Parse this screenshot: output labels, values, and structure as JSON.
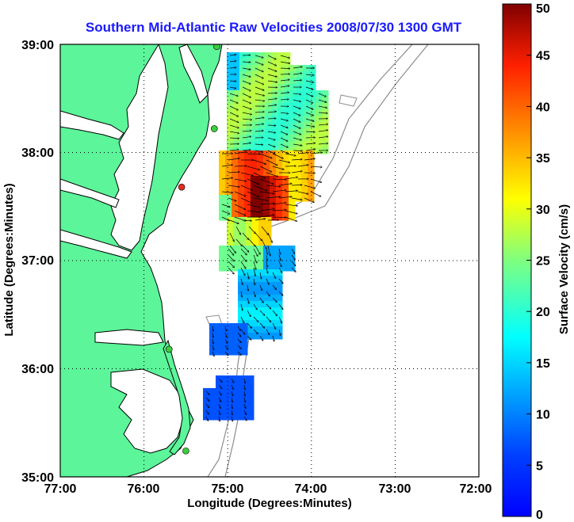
{
  "title": "Southern Mid-Atlantic Raw Velocities 2008/07/30 1300 GMT",
  "x_axis": {
    "label": "Longitude (Degrees:Minutes)",
    "ticks": [
      "77:00",
      "76:00",
      "75:00",
      "74:00",
      "73:00",
      "72:00"
    ]
  },
  "y_axis": {
    "label": "Latitude (Degrees:Minutes)",
    "ticks": [
      "39:00",
      "38:00",
      "37:00",
      "36:00",
      "35:00"
    ]
  },
  "colorbar": {
    "label": "Surface Velocity (cm/s)",
    "ticks": [
      "50",
      "45",
      "40",
      "35",
      "30",
      "25",
      "20",
      "15",
      "10",
      "5",
      "0"
    ],
    "colormap": "jet",
    "range": [
      0,
      50
    ]
  },
  "colors": {
    "land": "#5cf59a",
    "coastline": "#000000",
    "bathymetry": "#8c8c8c",
    "station_active": "#3ccd3c",
    "station_other": "#e03020",
    "title": "#1a1aff"
  },
  "map": {
    "lon_range": [
      -77,
      -72
    ],
    "lat_range": [
      35,
      39
    ],
    "grid": true
  },
  "stations": [
    {
      "lon": -75.13,
      "lat": 38.98,
      "status": "active"
    },
    {
      "lon": -75.16,
      "lat": 38.22,
      "status": "active"
    },
    {
      "lon": -75.55,
      "lat": 37.68,
      "status": "other"
    },
    {
      "lon": -75.7,
      "lat": 36.18,
      "status": "active"
    },
    {
      "lon": -75.5,
      "lat": 35.24,
      "status": "active"
    }
  ]
}
